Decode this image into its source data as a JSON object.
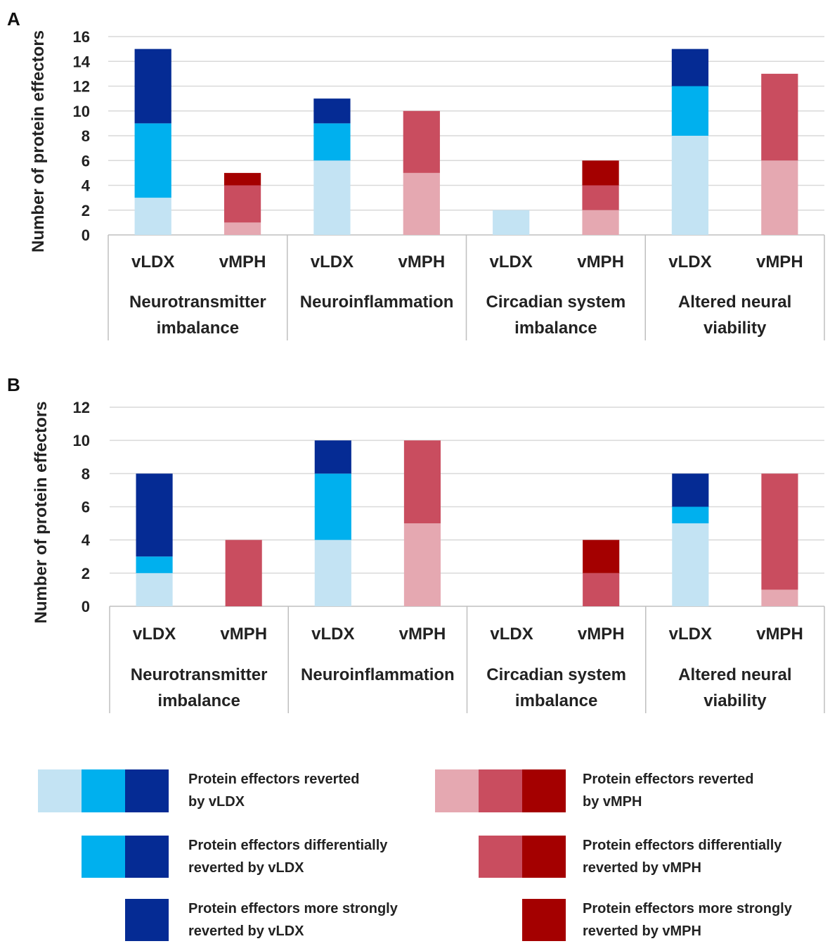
{
  "colors": {
    "ldx_light": "#c3e3f3",
    "ldx_mid": "#00b0ee",
    "ldx_dark": "#052b94",
    "mph_light": "#e5a8b1",
    "mph_mid": "#c94d5f",
    "mph_dark": "#a40000",
    "grid": "#d9d9d9",
    "axis": "#bfbfbf"
  },
  "chart_data": [
    {
      "panel": "A",
      "type": "bar",
      "stacked": true,
      "ylabel": "Number of protein effectors",
      "ylim": [
        0,
        16
      ],
      "yticks": [
        0,
        2,
        4,
        6,
        8,
        10,
        12,
        14,
        16
      ],
      "grid": true,
      "groups": [
        {
          "label_lines": [
            "Neurotransmitter",
            "imbalance"
          ],
          "bars": [
            {
              "label": "vLDX",
              "drug": "ldx",
              "segments": [
                3,
                6,
                6
              ]
            },
            {
              "label": "vMPH",
              "drug": "mph",
              "segments": [
                1,
                3,
                1
              ]
            }
          ]
        },
        {
          "label_lines": [
            "Neuroinflammation"
          ],
          "bars": [
            {
              "label": "vLDX",
              "drug": "ldx",
              "segments": [
                6,
                3,
                2
              ]
            },
            {
              "label": "vMPH",
              "drug": "mph",
              "segments": [
                5,
                5,
                0
              ]
            }
          ]
        },
        {
          "label_lines": [
            "Circadian system",
            "imbalance"
          ],
          "bars": [
            {
              "label": "vLDX",
              "drug": "ldx",
              "segments": [
                2,
                0,
                0
              ]
            },
            {
              "label": "vMPH",
              "drug": "mph",
              "segments": [
                2,
                2,
                2
              ]
            }
          ]
        },
        {
          "label_lines": [
            "Altered neural",
            "viability"
          ],
          "bars": [
            {
              "label": "vLDX",
              "drug": "ldx",
              "segments": [
                8,
                4,
                3
              ]
            },
            {
              "label": "vMPH",
              "drug": "mph",
              "segments": [
                6,
                7,
                0
              ]
            }
          ]
        }
      ]
    },
    {
      "panel": "B",
      "type": "bar",
      "stacked": true,
      "ylabel": "Number of protein effectors",
      "ylim": [
        0,
        12
      ],
      "yticks": [
        0,
        2,
        4,
        6,
        8,
        10,
        12
      ],
      "grid": true,
      "groups": [
        {
          "label_lines": [
            "Neurotransmitter",
            "imbalance"
          ],
          "bars": [
            {
              "label": "vLDX",
              "drug": "ldx",
              "segments": [
                2,
                1,
                5
              ]
            },
            {
              "label": "vMPH",
              "drug": "mph",
              "segments": [
                0,
                4,
                0
              ]
            }
          ]
        },
        {
          "label_lines": [
            "Neuroinflammation"
          ],
          "bars": [
            {
              "label": "vLDX",
              "drug": "ldx",
              "segments": [
                4,
                4,
                2
              ]
            },
            {
              "label": "vMPH",
              "drug": "mph",
              "segments": [
                5,
                5,
                0
              ]
            }
          ]
        },
        {
          "label_lines": [
            "Circadian system",
            "imbalance"
          ],
          "bars": [
            {
              "label": "vLDX",
              "drug": "ldx",
              "segments": [
                0,
                0,
                0
              ]
            },
            {
              "label": "vMPH",
              "drug": "mph",
              "segments": [
                0,
                2,
                2
              ]
            }
          ]
        },
        {
          "label_lines": [
            "Altered neural",
            "viability"
          ],
          "bars": [
            {
              "label": "vLDX",
              "drug": "ldx",
              "segments": [
                5,
                1,
                2
              ]
            },
            {
              "label": "vMPH",
              "drug": "mph",
              "segments": [
                1,
                7,
                0
              ]
            }
          ]
        }
      ]
    }
  ],
  "legend": [
    {
      "drug": "ldx",
      "swatches": [
        "light",
        "mid",
        "dark"
      ],
      "lines": [
        "Protein effectors reverted",
        "by vLDX"
      ]
    },
    {
      "drug": "mph",
      "swatches": [
        "light",
        "mid",
        "dark"
      ],
      "lines": [
        "Protein effectors reverted",
        "by vMPH"
      ]
    },
    {
      "drug": "ldx",
      "swatches": [
        "mid",
        "dark"
      ],
      "lines": [
        "Protein effectors differentially",
        "reverted by vLDX"
      ]
    },
    {
      "drug": "mph",
      "swatches": [
        "mid",
        "dark"
      ],
      "lines": [
        "Protein effectors differentially",
        "reverted by vMPH"
      ]
    },
    {
      "drug": "ldx",
      "swatches": [
        "dark"
      ],
      "lines": [
        "Protein effectors more strongly",
        "reverted by vLDX"
      ]
    },
    {
      "drug": "mph",
      "swatches": [
        "dark"
      ],
      "lines": [
        "Protein effectors more strongly",
        "reverted by vMPH"
      ]
    }
  ]
}
